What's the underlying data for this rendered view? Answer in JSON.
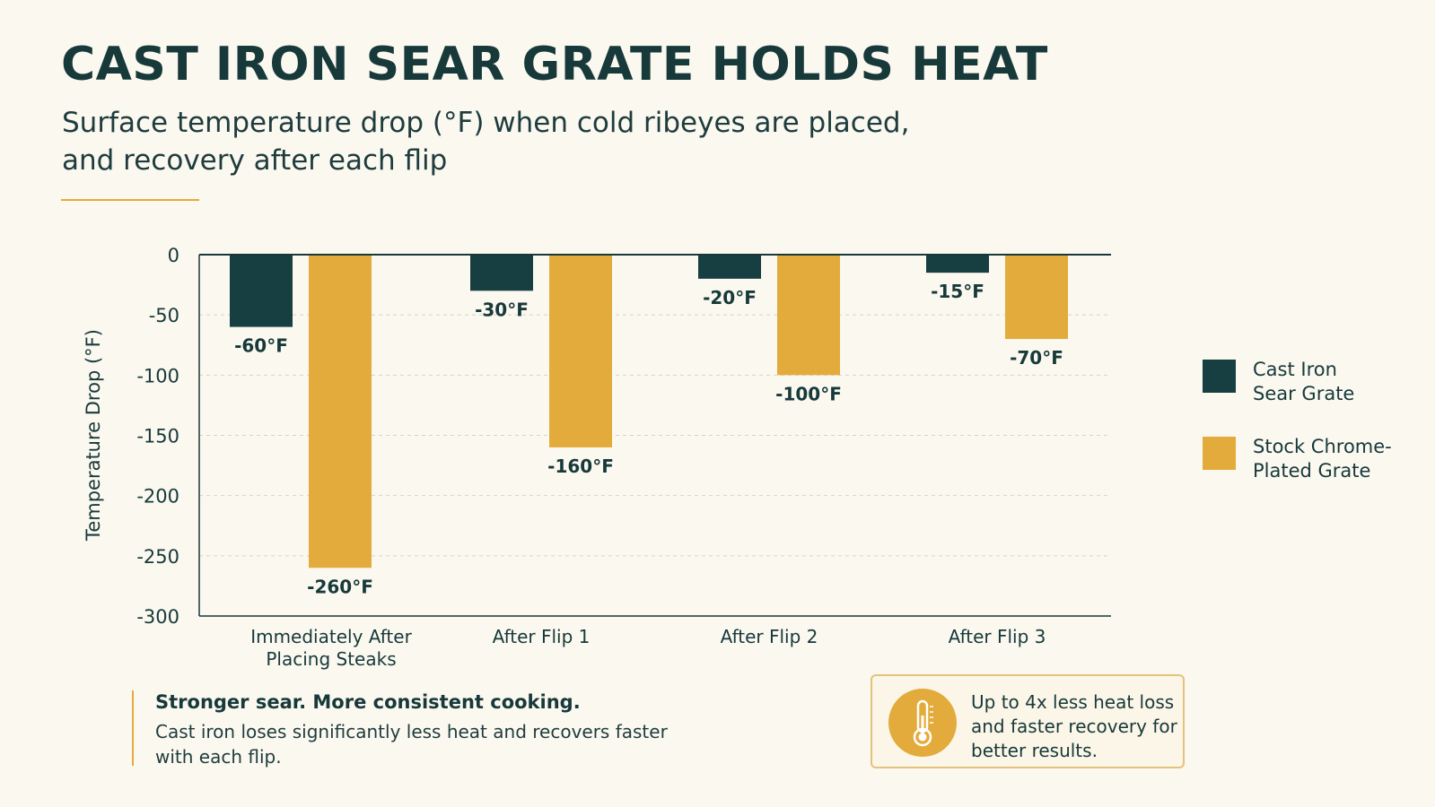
{
  "title": "CAST IRON SEAR GRATE HOLDS HEAT",
  "subtitle": "Surface temperature drop (°F) when cold ribeyes are placed, and recovery after each flip",
  "colors": {
    "cast_iron": "#173e40",
    "chrome": "#e3ab3b",
    "text": "#17393a",
    "grid": "#d9d3c4",
    "background": "#fbf8f0"
  },
  "chart_data": {
    "type": "bar",
    "ylabel": "Temperature Drop (°F)",
    "xlabel": "",
    "ylim": [
      -300,
      0
    ],
    "yticks": [
      0,
      -50,
      -100,
      -150,
      -200,
      -250,
      -300
    ],
    "grid": true,
    "legend_position": "right",
    "categories": [
      "Immediately After Placing Steaks",
      "After Flip 1",
      "After Flip 2",
      "After Flip 3"
    ],
    "category_lines": [
      [
        "Immediately After",
        "Placing Steaks"
      ],
      [
        "After Flip 1"
      ],
      [
        "After Flip 2"
      ],
      [
        "After Flip 3"
      ]
    ],
    "series": [
      {
        "name": "Cast Iron Sear Grate",
        "values": [
          -60,
          -30,
          -20,
          -15
        ],
        "labels": [
          "-60°F",
          "-30°F",
          "-20°F",
          "-15°F"
        ]
      },
      {
        "name": "Stock Chrome-Plated Grate",
        "values": [
          -260,
          -160,
          -100,
          -70
        ],
        "labels": [
          "-260°F",
          "-160°F",
          "-100°F",
          "-70°F"
        ]
      }
    ]
  },
  "legend": [
    {
      "lines": [
        "Cast Iron",
        "Sear Grate"
      ]
    },
    {
      "lines": [
        "Stock Chrome-",
        "Plated Grate"
      ]
    }
  ],
  "note": {
    "heading": "Stronger sear. More consistent cooking.",
    "body": "Cast iron loses significantly less heat and recovers faster with each flip."
  },
  "callout": {
    "icon": "thermometer-icon",
    "text": "Up to 4x less heat loss and faster recovery for better results."
  }
}
